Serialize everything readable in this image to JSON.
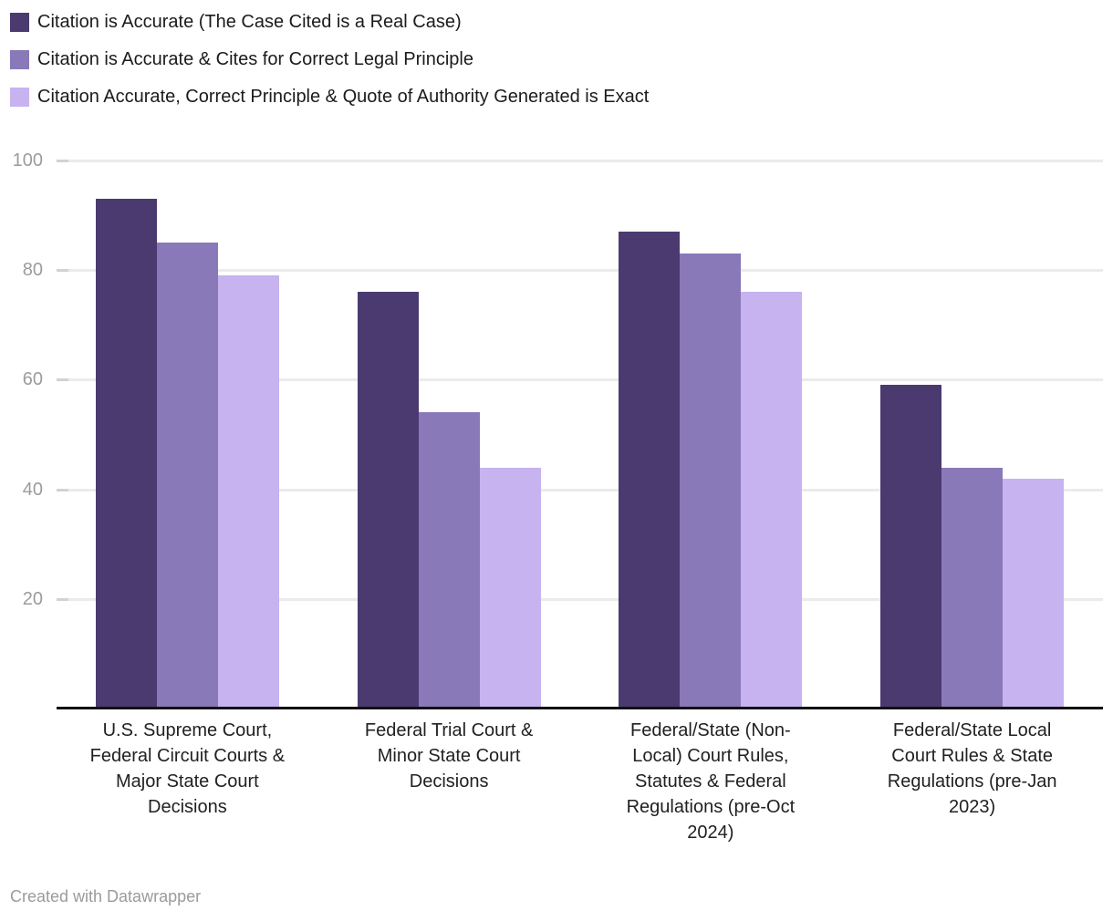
{
  "footer": {
    "text": "Created with Datawrapper"
  },
  "chart_data": {
    "type": "bar",
    "title": "",
    "xlabel": "",
    "ylabel": "",
    "ylim": [
      0,
      100
    ],
    "yticks": [
      20,
      40,
      60,
      80,
      100
    ],
    "grid": true,
    "legend_position": "top-left",
    "categories": [
      "U.S. Supreme Court,\nFederal Circuit Courts &\nMajor State Court\nDecisions",
      "Federal Trial Court &\nMinor State Court\nDecisions",
      "Federal/State (Non-\nLocal) Court Rules,\nStatutes & Federal\nRegulations (pre-Oct\n2024)",
      "Federal/State Local\nCourt Rules & State\nRegulations (pre-Jan\n2023)"
    ],
    "series": [
      {
        "name": "Citation is Accurate (The Case Cited is a Real Case)",
        "color": "#4a3a70",
        "values": [
          93,
          76,
          87,
          59
        ]
      },
      {
        "name": "Citation is Accurate & Cites for Correct Legal Principle",
        "color": "#8979b9",
        "values": [
          85,
          54,
          83,
          44
        ]
      },
      {
        "name": "Citation Accurate, Correct Principle & Quote of Authority Generated is Exact",
        "color": "#c6b3f0",
        "values": [
          79,
          44,
          76,
          42
        ]
      }
    ]
  }
}
